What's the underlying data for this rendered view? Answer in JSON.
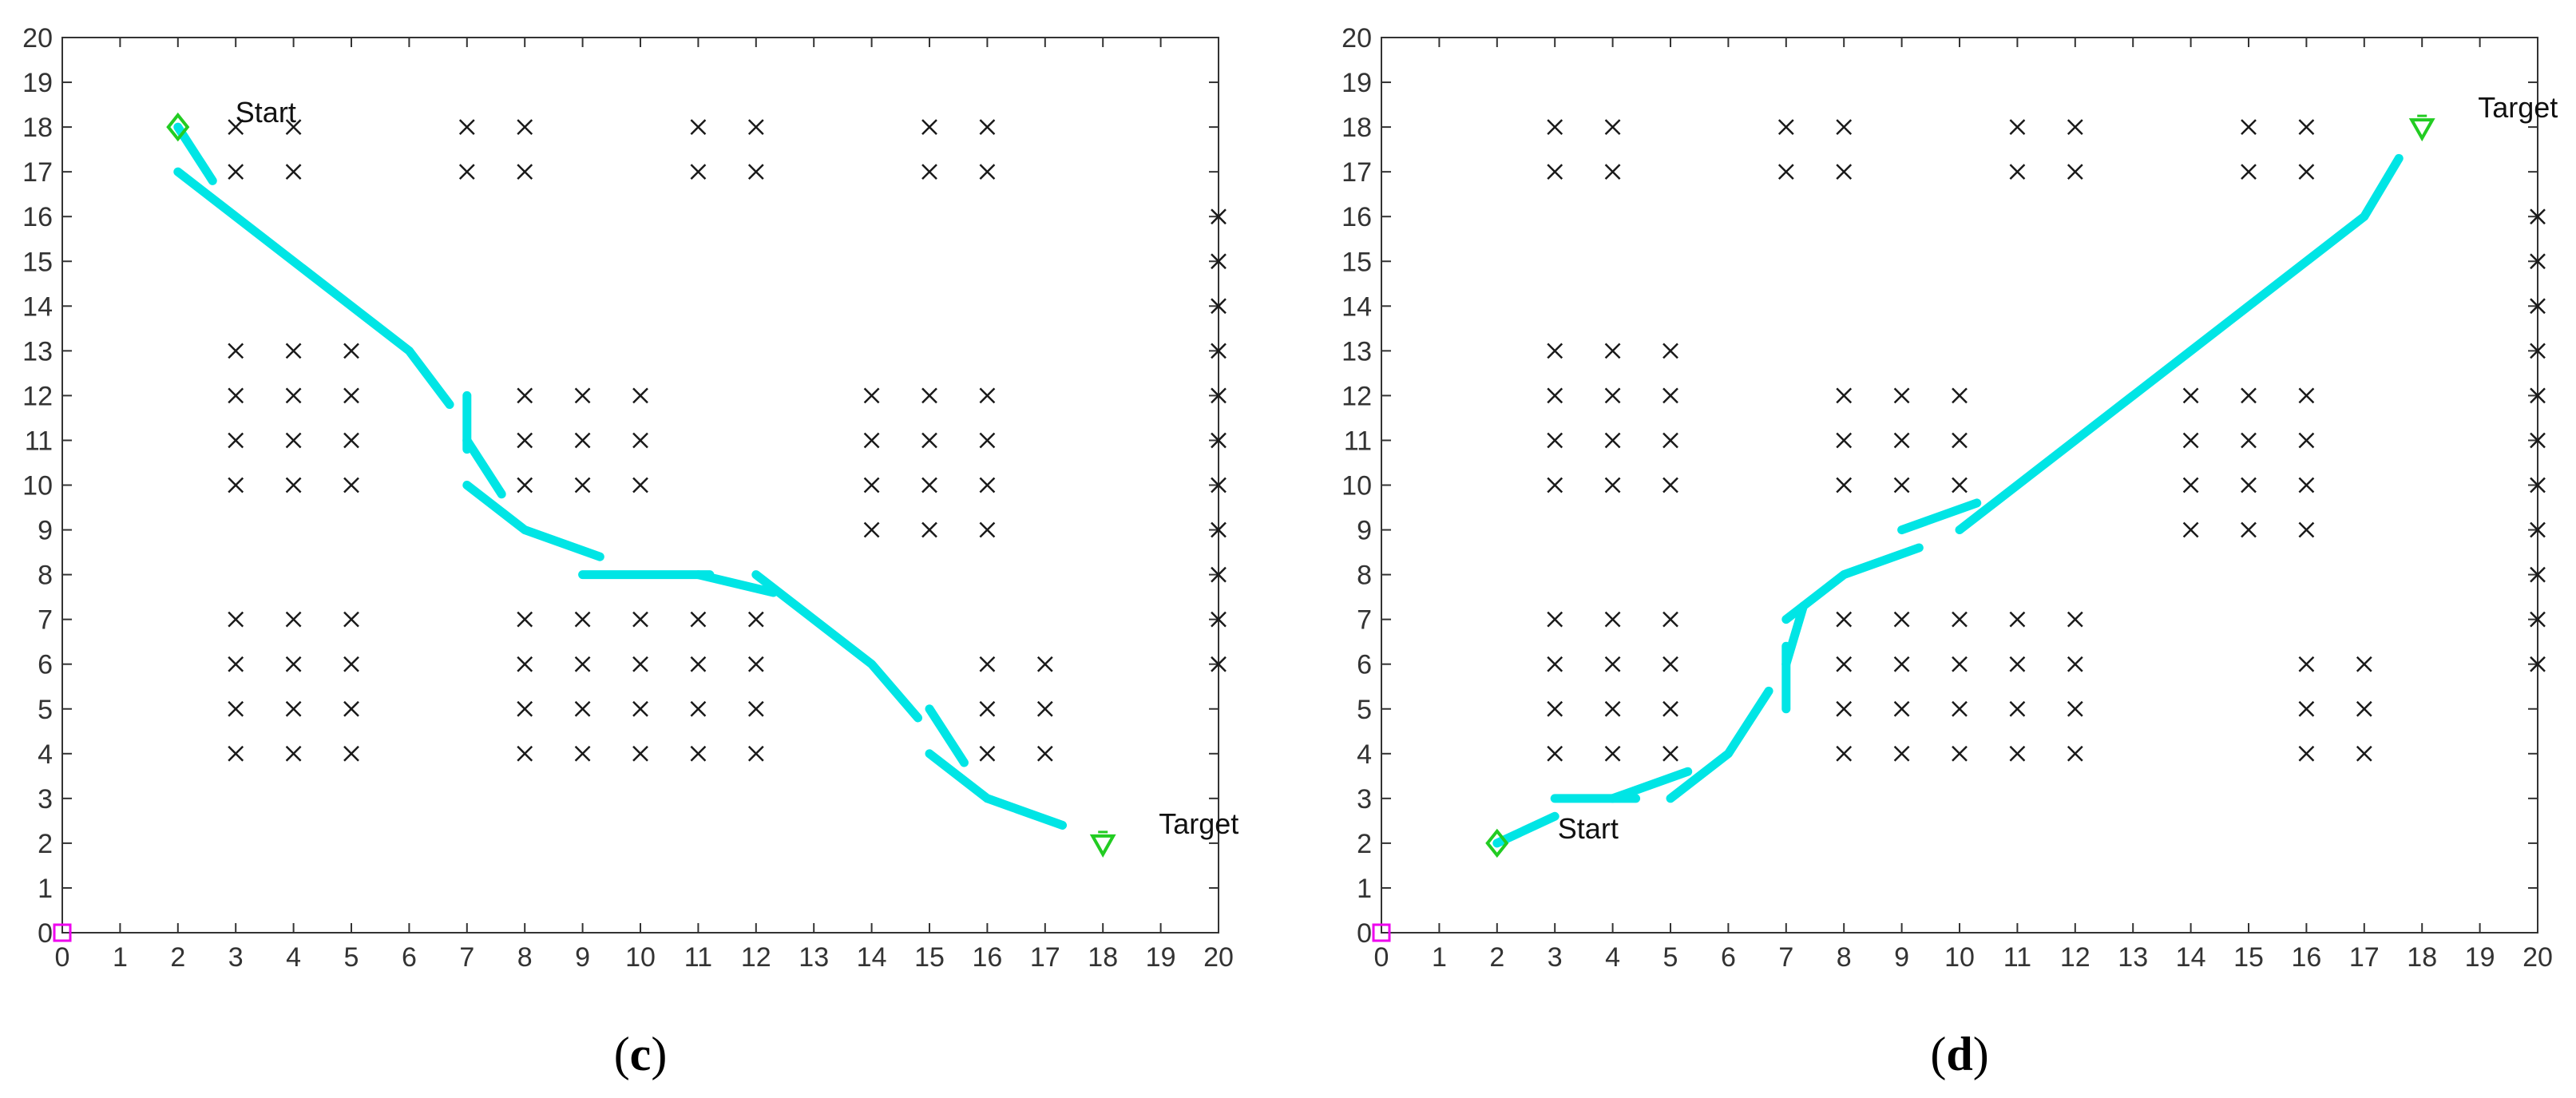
{
  "chart_data": [
    {
      "type": "scatter",
      "caption_open": "(",
      "caption_letter": "c",
      "caption_close": ")",
      "xlim": [
        0,
        20
      ],
      "ylim": [
        0,
        20
      ],
      "x_ticks": [
        0,
        1,
        2,
        3,
        4,
        5,
        6,
        7,
        8,
        9,
        10,
        11,
        12,
        13,
        14,
        15,
        16,
        17,
        18,
        19,
        20
      ],
      "y_ticks": [
        0,
        1,
        2,
        3,
        4,
        5,
        6,
        7,
        8,
        9,
        10,
        11,
        12,
        13,
        14,
        15,
        16,
        17,
        18,
        19,
        20
      ],
      "grid": false,
      "origin_marker": {
        "x": 0,
        "y": 0,
        "color": "#ee00ee"
      },
      "start": {
        "x": 2,
        "y": 18,
        "label": "Start",
        "color": "#22cc22"
      },
      "target": {
        "x": 18,
        "y": 2,
        "label": "Target",
        "color": "#22cc22"
      },
      "path_color": "#00e5e5",
      "path_segments": [
        [
          [
            2,
            18
          ],
          [
            2.6,
            16.8
          ]
        ],
        [
          [
            2,
            17
          ],
          [
            6,
            13
          ],
          [
            6.7,
            11.8
          ]
        ],
        [
          [
            7,
            12
          ],
          [
            7,
            10.8
          ]
        ],
        [
          [
            7,
            11
          ],
          [
            7.6,
            9.8
          ]
        ],
        [
          [
            7,
            10
          ],
          [
            8,
            9
          ],
          [
            9.3,
            8.4
          ]
        ],
        [
          [
            9,
            8
          ],
          [
            11.2,
            8
          ]
        ],
        [
          [
            11,
            8
          ],
          [
            12.3,
            7.6
          ]
        ],
        [
          [
            12,
            8
          ],
          [
            14,
            6
          ],
          [
            14.8,
            4.8
          ]
        ],
        [
          [
            15,
            5
          ],
          [
            15.6,
            3.8
          ]
        ],
        [
          [
            15,
            4
          ],
          [
            16,
            3
          ],
          [
            17.3,
            2.4
          ]
        ]
      ],
      "obstacles": [
        [
          3,
          18
        ],
        [
          4,
          18
        ],
        [
          3,
          17
        ],
        [
          4,
          17
        ],
        [
          7,
          18
        ],
        [
          8,
          18
        ],
        [
          7,
          17
        ],
        [
          8,
          17
        ],
        [
          11,
          18
        ],
        [
          12,
          18
        ],
        [
          11,
          17
        ],
        [
          12,
          17
        ],
        [
          15,
          18
        ],
        [
          16,
          18
        ],
        [
          15,
          17
        ],
        [
          16,
          17
        ],
        [
          20,
          16
        ],
        [
          20,
          15
        ],
        [
          20,
          14
        ],
        [
          20,
          13
        ],
        [
          20,
          12
        ],
        [
          20,
          11
        ],
        [
          20,
          10
        ],
        [
          20,
          9
        ],
        [
          20,
          8
        ],
        [
          20,
          7
        ],
        [
          20,
          6
        ],
        [
          3,
          13
        ],
        [
          4,
          13
        ],
        [
          5,
          13
        ],
        [
          3,
          12
        ],
        [
          4,
          12
        ],
        [
          5,
          12
        ],
        [
          3,
          11
        ],
        [
          4,
          11
        ],
        [
          5,
          11
        ],
        [
          3,
          10
        ],
        [
          4,
          10
        ],
        [
          5,
          10
        ],
        [
          8,
          12
        ],
        [
          9,
          12
        ],
        [
          10,
          12
        ],
        [
          8,
          11
        ],
        [
          9,
          11
        ],
        [
          10,
          11
        ],
        [
          8,
          10
        ],
        [
          9,
          10
        ],
        [
          10,
          10
        ],
        [
          14,
          12
        ],
        [
          15,
          12
        ],
        [
          16,
          12
        ],
        [
          14,
          11
        ],
        [
          15,
          11
        ],
        [
          16,
          11
        ],
        [
          14,
          10
        ],
        [
          15,
          10
        ],
        [
          16,
          10
        ],
        [
          14,
          9
        ],
        [
          15,
          9
        ],
        [
          16,
          9
        ],
        [
          3,
          7
        ],
        [
          4,
          7
        ],
        [
          5,
          7
        ],
        [
          3,
          6
        ],
        [
          4,
          6
        ],
        [
          5,
          6
        ],
        [
          3,
          5
        ],
        [
          4,
          5
        ],
        [
          5,
          5
        ],
        [
          3,
          4
        ],
        [
          4,
          4
        ],
        [
          5,
          4
        ],
        [
          8,
          7
        ],
        [
          9,
          7
        ],
        [
          10,
          7
        ],
        [
          11,
          7
        ],
        [
          12,
          7
        ],
        [
          8,
          6
        ],
        [
          9,
          6
        ],
        [
          10,
          6
        ],
        [
          11,
          6
        ],
        [
          12,
          6
        ],
        [
          8,
          5
        ],
        [
          9,
          5
        ],
        [
          10,
          5
        ],
        [
          11,
          5
        ],
        [
          12,
          5
        ],
        [
          8,
          4
        ],
        [
          9,
          4
        ],
        [
          10,
          4
        ],
        [
          11,
          4
        ],
        [
          12,
          4
        ],
        [
          16,
          6
        ],
        [
          17,
          6
        ],
        [
          16,
          5
        ],
        [
          17,
          5
        ],
        [
          16,
          4
        ],
        [
          17,
          4
        ]
      ]
    },
    {
      "type": "scatter",
      "caption_open": "(",
      "caption_letter": "d",
      "caption_close": ")",
      "xlim": [
        0,
        20
      ],
      "ylim": [
        0,
        20
      ],
      "x_ticks": [
        0,
        1,
        2,
        3,
        4,
        5,
        6,
        7,
        8,
        9,
        10,
        11,
        12,
        13,
        14,
        15,
        16,
        17,
        18,
        19,
        20
      ],
      "y_ticks": [
        0,
        1,
        2,
        3,
        4,
        5,
        6,
        7,
        8,
        9,
        10,
        11,
        12,
        13,
        14,
        15,
        16,
        17,
        18,
        19,
        20
      ],
      "grid": false,
      "origin_marker": {
        "x": 0,
        "y": 0,
        "color": "#ee00ee"
      },
      "start": {
        "x": 2,
        "y": 2,
        "label": "Start",
        "color": "#22cc22"
      },
      "target": {
        "x": 18,
        "y": 18,
        "label": "Target",
        "color": "#22cc22"
      },
      "path_color": "#00e5e5",
      "path_segments": [
        [
          [
            2,
            2
          ],
          [
            3,
            2.6
          ]
        ],
        [
          [
            3,
            3
          ],
          [
            4.4,
            3
          ]
        ],
        [
          [
            4,
            3
          ],
          [
            5.3,
            3.6
          ]
        ],
        [
          [
            5,
            3
          ],
          [
            6,
            4
          ],
          [
            6.7,
            5.4
          ]
        ],
        [
          [
            7,
            5
          ],
          [
            7,
            6.4
          ]
        ],
        [
          [
            7,
            6
          ],
          [
            7.3,
            7.3
          ]
        ],
        [
          [
            7,
            7
          ],
          [
            8,
            8
          ],
          [
            9.3,
            8.6
          ]
        ],
        [
          [
            9,
            9
          ],
          [
            10.3,
            9.6
          ]
        ],
        [
          [
            10,
            9
          ],
          [
            14,
            13
          ],
          [
            17,
            16
          ],
          [
            17.6,
            17.3
          ]
        ]
      ],
      "obstacles": [
        [
          3,
          18
        ],
        [
          4,
          18
        ],
        [
          3,
          17
        ],
        [
          4,
          17
        ],
        [
          7,
          18
        ],
        [
          8,
          18
        ],
        [
          7,
          17
        ],
        [
          8,
          17
        ],
        [
          11,
          18
        ],
        [
          12,
          18
        ],
        [
          11,
          17
        ],
        [
          12,
          17
        ],
        [
          15,
          18
        ],
        [
          16,
          18
        ],
        [
          15,
          17
        ],
        [
          16,
          17
        ],
        [
          20,
          16
        ],
        [
          20,
          15
        ],
        [
          20,
          14
        ],
        [
          20,
          13
        ],
        [
          20,
          12
        ],
        [
          20,
          11
        ],
        [
          20,
          10
        ],
        [
          20,
          9
        ],
        [
          20,
          8
        ],
        [
          20,
          7
        ],
        [
          20,
          6
        ],
        [
          3,
          13
        ],
        [
          4,
          13
        ],
        [
          5,
          13
        ],
        [
          3,
          12
        ],
        [
          4,
          12
        ],
        [
          5,
          12
        ],
        [
          3,
          11
        ],
        [
          4,
          11
        ],
        [
          5,
          11
        ],
        [
          3,
          10
        ],
        [
          4,
          10
        ],
        [
          5,
          10
        ],
        [
          8,
          12
        ],
        [
          9,
          12
        ],
        [
          10,
          12
        ],
        [
          8,
          11
        ],
        [
          9,
          11
        ],
        [
          10,
          11
        ],
        [
          8,
          10
        ],
        [
          9,
          10
        ],
        [
          10,
          10
        ],
        [
          14,
          12
        ],
        [
          15,
          12
        ],
        [
          16,
          12
        ],
        [
          14,
          11
        ],
        [
          15,
          11
        ],
        [
          16,
          11
        ],
        [
          14,
          10
        ],
        [
          15,
          10
        ],
        [
          16,
          10
        ],
        [
          14,
          9
        ],
        [
          15,
          9
        ],
        [
          16,
          9
        ],
        [
          3,
          7
        ],
        [
          4,
          7
        ],
        [
          5,
          7
        ],
        [
          3,
          6
        ],
        [
          4,
          6
        ],
        [
          5,
          6
        ],
        [
          3,
          5
        ],
        [
          4,
          5
        ],
        [
          5,
          5
        ],
        [
          3,
          4
        ],
        [
          4,
          4
        ],
        [
          5,
          4
        ],
        [
          8,
          7
        ],
        [
          9,
          7
        ],
        [
          10,
          7
        ],
        [
          11,
          7
        ],
        [
          12,
          7
        ],
        [
          8,
          6
        ],
        [
          9,
          6
        ],
        [
          10,
          6
        ],
        [
          11,
          6
        ],
        [
          12,
          6
        ],
        [
          8,
          5
        ],
        [
          9,
          5
        ],
        [
          10,
          5
        ],
        [
          11,
          5
        ],
        [
          12,
          5
        ],
        [
          8,
          4
        ],
        [
          9,
          4
        ],
        [
          10,
          4
        ],
        [
          11,
          4
        ],
        [
          12,
          4
        ],
        [
          16,
          6
        ],
        [
          17,
          6
        ],
        [
          16,
          5
        ],
        [
          17,
          5
        ],
        [
          16,
          4
        ],
        [
          17,
          4
        ]
      ]
    }
  ]
}
